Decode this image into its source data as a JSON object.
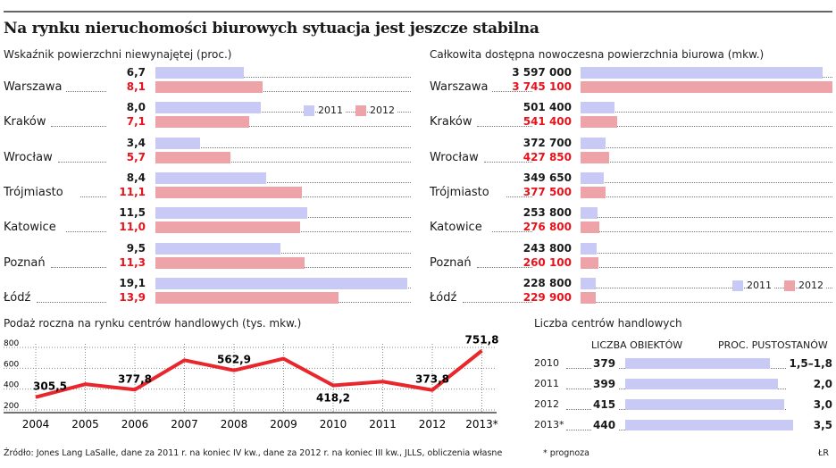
{
  "title": "Na rynku nieruchomości biurowych sytuacja jest jeszcze stabilna",
  "colors": {
    "y2011": "#c9c9f5",
    "y2012": "#eea3a9",
    "red_text": "#e8121b",
    "line": "#e8262b"
  },
  "chart_data": [
    {
      "type": "bar",
      "title": "Wskaźnik powierzchni niewynajętej (proc.)",
      "categories": [
        "Warszawa",
        "Kraków",
        "Wrocław",
        "Trójmiasto",
        "Katowice",
        "Poznań",
        "Łódź"
      ],
      "series": [
        {
          "name": "2011",
          "values": [
            6.7,
            8.0,
            3.4,
            8.4,
            11.5,
            9.5,
            19.1
          ],
          "labels": [
            "6,7",
            "8,0",
            "3,4",
            "8,4",
            "11,5",
            "9,5",
            "19,1"
          ]
        },
        {
          "name": "2012",
          "values": [
            8.1,
            7.1,
            5.7,
            11.1,
            11.0,
            11.3,
            13.9
          ],
          "labels": [
            "8,1",
            "7,1",
            "5,7",
            "11,1",
            "11,0",
            "11,3",
            "13,9"
          ]
        }
      ],
      "legend": "top-right"
    },
    {
      "type": "bar",
      "title": "Całkowita dostępna nowoczesna powierzchnia biurowa  (mkw.)",
      "categories": [
        "Warszawa",
        "Kraków",
        "Wrocław",
        "Trójmiasto",
        "Katowice",
        "Poznań",
        "Łódź"
      ],
      "series": [
        {
          "name": "2011",
          "values": [
            3597000,
            501400,
            372700,
            349650,
            253800,
            243800,
            228800
          ],
          "labels": [
            "3 597 000",
            "501 400",
            "372 700",
            "349 650",
            "253 800",
            "243 800",
            "228 800"
          ]
        },
        {
          "name": "2012",
          "values": [
            3745100,
            541400,
            427850,
            377500,
            276800,
            260100,
            229900
          ],
          "labels": [
            "3 745 100",
            "541 400",
            "427 850",
            "377 500",
            "276 800",
            "260 100",
            "229 900"
          ]
        }
      ],
      "legend": "bottom-right"
    },
    {
      "type": "line",
      "title": "Podaż roczna na rynku centrów handlowych (tys. mkw.)",
      "x": [
        "2004",
        "2005",
        "2006",
        "2007",
        "2008",
        "2009",
        "2010",
        "2011",
        "2012",
        "2013*"
      ],
      "y": [
        305.5,
        430,
        377.8,
        660,
        562.9,
        675,
        418.2,
        455,
        373.8,
        751.8
      ],
      "point_labels": [
        "305,5",
        "",
        "377,8",
        "",
        "562,9",
        "",
        "418,2",
        "",
        "373,8",
        "751,8"
      ],
      "yticks": [
        "800",
        "600",
        "400",
        "200"
      ],
      "ylim": [
        200,
        800
      ],
      "grid": true
    },
    {
      "type": "table",
      "title": "Liczba centrów handlowych",
      "columns": [
        "LICZBA OBIEKTÓW",
        "PROC. PUSTOSTANÓW"
      ],
      "rows": [
        {
          "year": "2010",
          "count": 379,
          "vacancy": "1,5–1,8"
        },
        {
          "year": "2011",
          "count": 399,
          "vacancy": "2,0"
        },
        {
          "year": "2012",
          "count": 415,
          "vacancy": "3,0"
        },
        {
          "year": "2013*",
          "count": 440,
          "vacancy": "3,5"
        }
      ]
    }
  ],
  "footer": {
    "source": "Źródło: Jones Lang LaSalle, dane za 2011 r. na koniec IV kw., dane za 2012 r. na koniec III kw., JLLS, obliczenia własne",
    "note": "* prognoza",
    "author": "ŁR"
  }
}
